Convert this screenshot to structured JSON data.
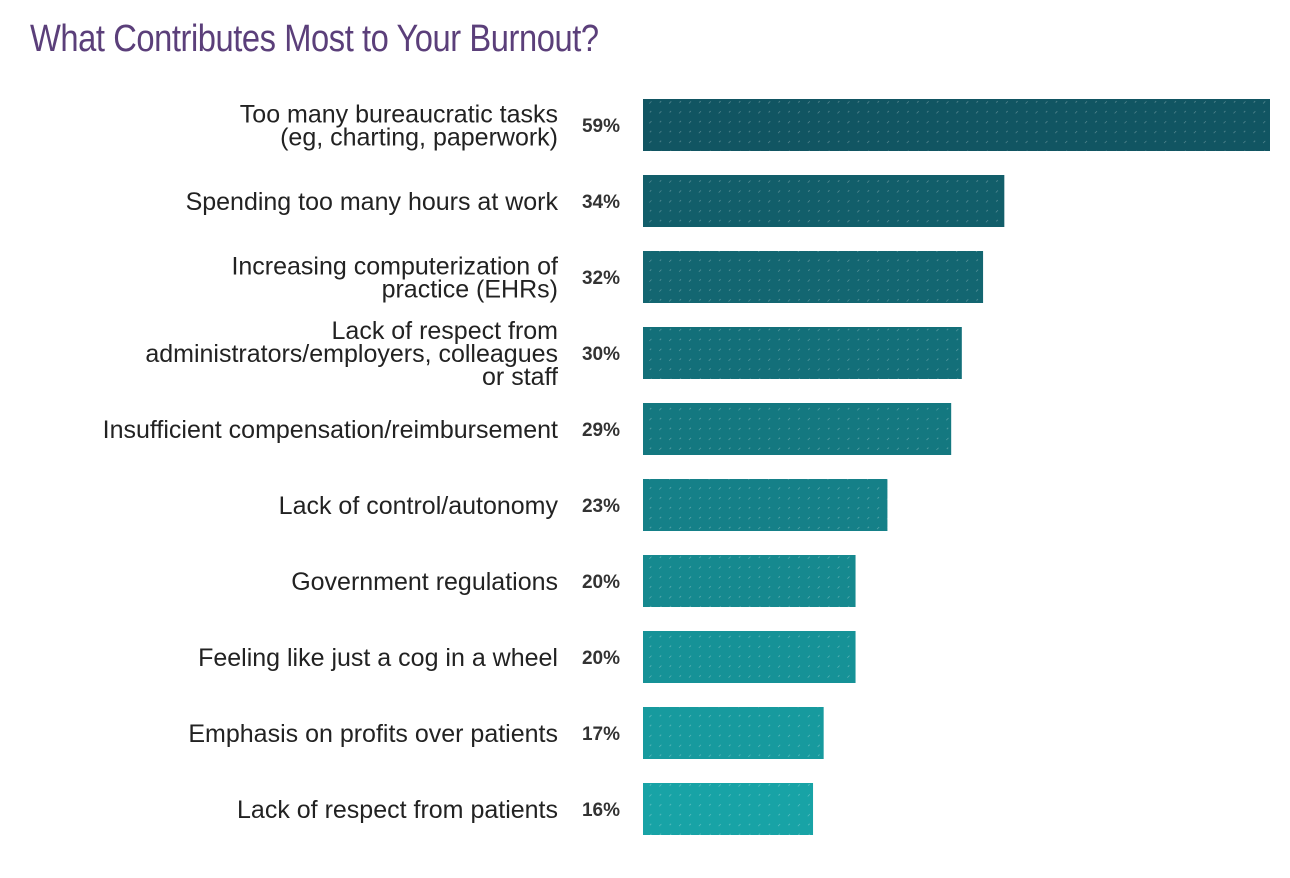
{
  "title": "What Contributes Most to Your Burnout?",
  "colors": {
    "title": "#5b3f7a",
    "bar_dark": "#115562",
    "bar_light": "#18a3a6",
    "label": "#222222",
    "value": "#333333"
  },
  "chart_data": {
    "type": "bar",
    "orientation": "horizontal",
    "title": "What Contributes Most to Your Burnout?",
    "xlabel": "",
    "ylabel": "",
    "xlim": [
      0,
      59
    ],
    "grid": false,
    "legend": "none",
    "categories": [
      "Too many bureaucratic tasks (eg, charting, paperwork)",
      "Spending too many hours at work",
      "Increasing computerization of practice (EHRs)",
      "Lack of respect from administrators/employers, colleagues or staff",
      "Insufficient compensation/reimbursement",
      "Lack of control/autonomy",
      "Government regulations",
      "Feeling like just a cog in a wheel",
      "Emphasis on profits over patients",
      "Lack of respect from patients"
    ],
    "values": [
      59,
      34,
      32,
      30,
      29,
      23,
      20,
      20,
      17,
      16
    ],
    "value_labels": [
      "59%",
      "34%",
      "32%",
      "30%",
      "29%",
      "23%",
      "20%",
      "20%",
      "17%",
      "16%"
    ]
  }
}
